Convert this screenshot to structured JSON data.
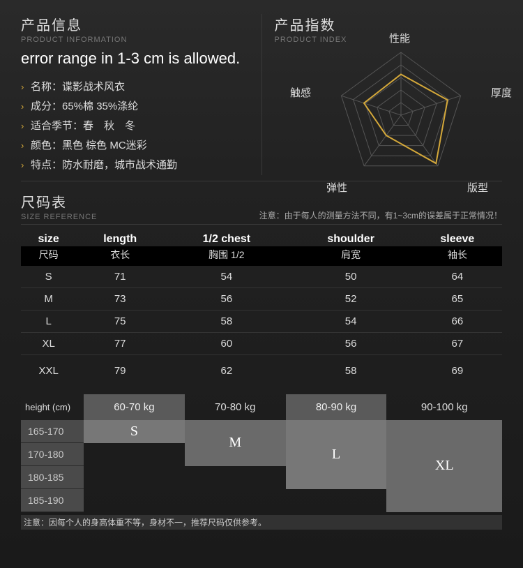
{
  "product_info": {
    "heading_cn": "产品信息",
    "heading_en": "PRODUCT INFORMATION",
    "error_line": "error range in 1-3 cm is allowed.",
    "items": [
      "名称：谍影战术风衣",
      "成分：65%棉  35%涤纶",
      "适合季节：春　秋　冬",
      "颜色：黑色  棕色  MC迷彩",
      "特点：防水耐磨，城市战术通勤"
    ]
  },
  "product_index": {
    "heading_cn": "产品指数",
    "heading_en": "PRODUCT INDEX",
    "radar": {
      "type": "radar",
      "axes": [
        "性能",
        "厚度",
        "版型",
        "弹性",
        "触感"
      ],
      "values": [
        0.65,
        0.78,
        0.95,
        0.4,
        0.62
      ],
      "max": 1.0,
      "rings": 5,
      "line_color": "#d4a83a",
      "line_width": 2,
      "grid_color": "#555555",
      "background_color": "transparent",
      "label_color": "#dddddd",
      "label_fontsize": 15
    }
  },
  "size_ref": {
    "heading_cn": "尺码表",
    "heading_en": "SIZE REFERENCE",
    "note": "注意：由于每人的测量方法不同，有1~3cm的误差属于正常情况！",
    "columns_en": [
      "size",
      "length",
      "1/2 chest",
      "shoulder",
      "sleeve"
    ],
    "columns_cn": [
      "尺码",
      "衣长",
      "胸围 1/2",
      "肩宽",
      "袖长"
    ],
    "rows": [
      [
        "S",
        "71",
        "54",
        "50",
        "64"
      ],
      [
        "M",
        "73",
        "56",
        "52",
        "65"
      ],
      [
        "L",
        "75",
        "58",
        "54",
        "66"
      ],
      [
        "XL",
        "77",
        "60",
        "56",
        "67"
      ],
      [
        "XXL",
        "79",
        "62",
        "58",
        "69"
      ]
    ]
  },
  "recommend": {
    "height_label": "height (cm)",
    "weights": [
      "60-70 kg",
      "70-80 kg",
      "80-90 kg",
      "90-100 kg"
    ],
    "heights": [
      "165-170",
      "170-180",
      "180-185",
      "185-190"
    ],
    "cells": {
      "s": "S",
      "m": "M",
      "l": "L",
      "xl": "XL"
    },
    "footnote": "注意：因每个人的身高体重不等，身材不一，推荐尺码仅供参考。"
  },
  "style": {
    "bg": "#1a1a1a",
    "text": "#cccccc",
    "accent": "#d4a83a",
    "grid": "#555555"
  }
}
